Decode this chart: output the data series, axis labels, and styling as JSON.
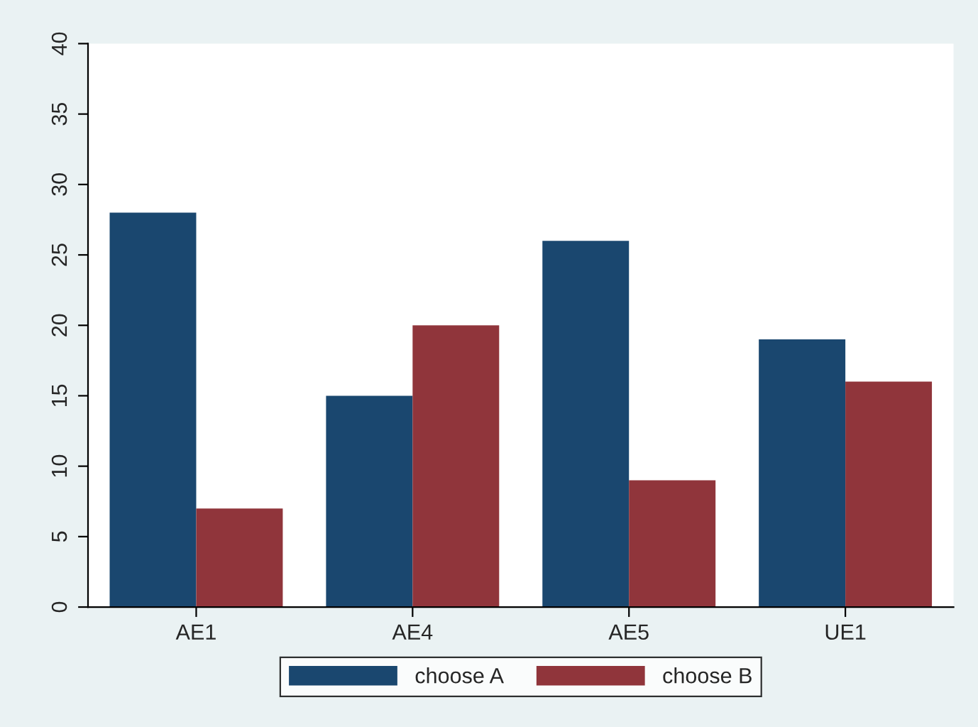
{
  "chart_data": {
    "type": "bar",
    "categories": [
      "AE1",
      "AE4",
      "AE5",
      "UE1"
    ],
    "series": [
      {
        "name": "choose A",
        "color": "#1a476f",
        "values": [
          28,
          15,
          26,
          19
        ]
      },
      {
        "name": "choose B",
        "color": "#90353b",
        "values": [
          7,
          20,
          9,
          16
        ]
      }
    ],
    "ylim": [
      0,
      40
    ],
    "yticks": [
      0,
      5,
      10,
      15,
      20,
      25,
      30,
      35,
      40
    ],
    "grid": false,
    "legend": "bottom"
  }
}
